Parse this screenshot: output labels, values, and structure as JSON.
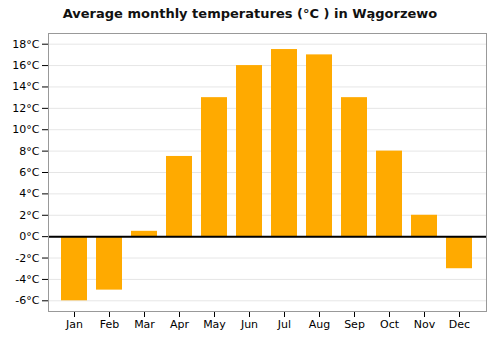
{
  "chart_data": {
    "type": "bar",
    "title": "Average monthly temperatures (°C ) in Wągorzewo",
    "categories": [
      "Jan",
      "Feb",
      "Mar",
      "Apr",
      "May",
      "Jun",
      "Jul",
      "Aug",
      "Sep",
      "Oct",
      "Nov",
      "Dec"
    ],
    "values": [
      -6.0,
      -5.0,
      0.5,
      7.5,
      13.0,
      16.0,
      17.5,
      17.0,
      13.0,
      8.0,
      2.0,
      -3.0
    ],
    "color": "#FFAA00",
    "ylim": [
      -7,
      19
    ],
    "yticks": [
      {
        "value": -6,
        "label": "-6°C"
      },
      {
        "value": -4,
        "label": "-4°C"
      },
      {
        "value": -2,
        "label": "-2°C"
      },
      {
        "value": 0,
        "label": "0°C"
      },
      {
        "value": 2,
        "label": "2°C"
      },
      {
        "value": 4,
        "label": "4°C"
      },
      {
        "value": 6,
        "label": "6°C"
      },
      {
        "value": 8,
        "label": "8°C"
      },
      {
        "value": 10,
        "label": "10°C"
      },
      {
        "value": 12,
        "label": "12°C"
      },
      {
        "value": 14,
        "label": "14°C"
      },
      {
        "value": 16,
        "label": "16°C"
      },
      {
        "value": 18,
        "label": "18°C"
      }
    ],
    "grid": true
  }
}
